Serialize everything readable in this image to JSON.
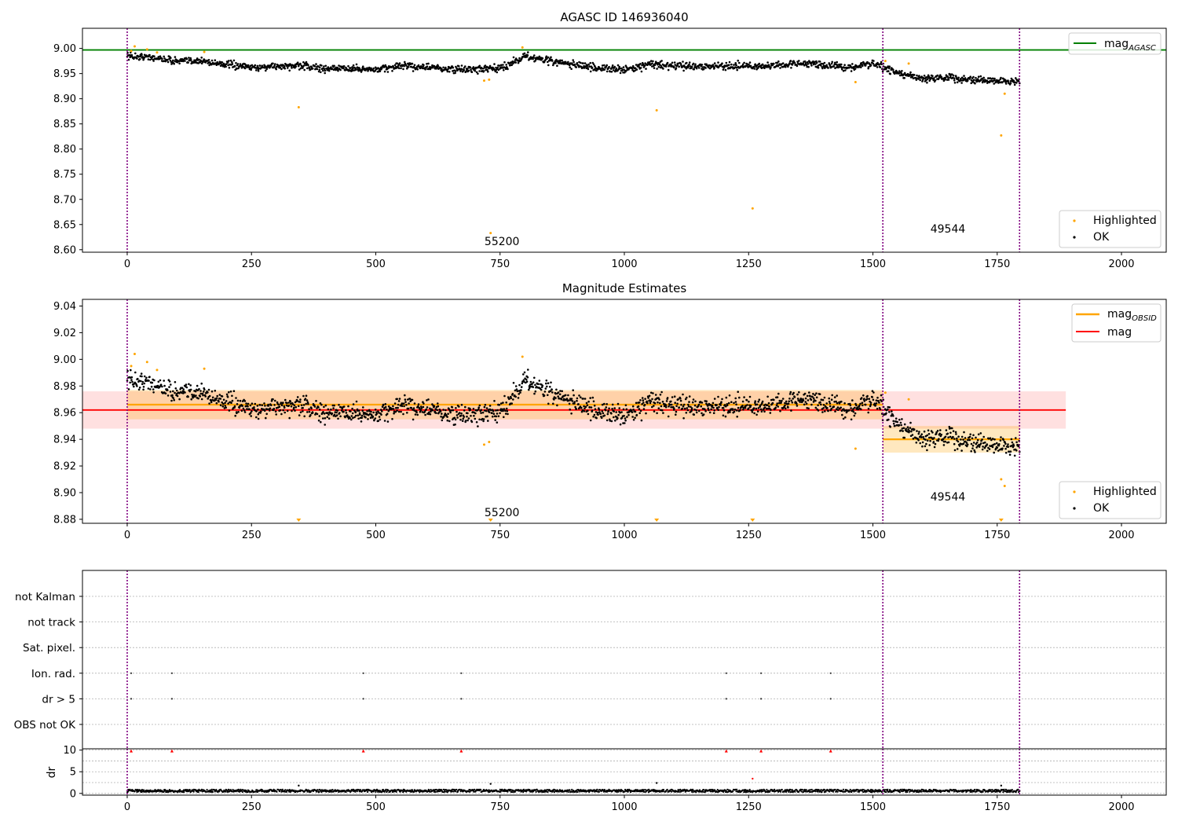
{
  "chart_data": [
    {
      "type": "scatter",
      "title": "AGASC ID 146936040",
      "xlim": [
        -90,
        2090
      ],
      "ylim": [
        8.595,
        9.04
      ],
      "xticks": [
        0,
        250,
        500,
        750,
        1000,
        1250,
        1500,
        1750,
        2000
      ],
      "xtick_labels": [
        "0",
        "250",
        "500",
        "750",
        "1000",
        "1250",
        "1500",
        "1750",
        "2000"
      ],
      "yticks": [
        8.6,
        8.65,
        8.7,
        8.75,
        8.8,
        8.85,
        8.9,
        8.95,
        9.0
      ],
      "ytick_labels": [
        "8.60",
        "8.65",
        "8.70",
        "8.75",
        "8.80",
        "8.85",
        "8.90",
        "8.95",
        "9.00"
      ],
      "hline": {
        "label": "mag",
        "label_sub": "AGASC",
        "y": 8.997,
        "color": "#008000"
      },
      "vlines": [
        0,
        1520,
        1795
      ],
      "annotations": [
        {
          "text": "55200",
          "x": 725
        },
        {
          "text": "49544",
          "x": 1622
        }
      ],
      "legend_lines": {
        "position": "upper right",
        "entries": [
          {
            "label": "mag",
            "sub": "AGASC",
            "color": "#008000"
          }
        ]
      },
      "legend_points": {
        "position": "lower right",
        "entries": [
          {
            "label": "Highlighted",
            "color": "#ffa500"
          },
          {
            "label": "OK",
            "color": "#000000"
          }
        ]
      },
      "ok_trend": {
        "x": [
          0,
          50,
          100,
          150,
          200,
          250,
          300,
          350,
          400,
          450,
          500,
          550,
          600,
          650,
          700,
          750,
          800,
          850,
          900,
          950,
          1000,
          1050,
          1100,
          1150,
          1200,
          1250,
          1300,
          1350,
          1400,
          1450,
          1500,
          1520,
          1550,
          1600,
          1650,
          1700,
          1750,
          1795
        ],
        "y": [
          8.985,
          8.982,
          8.975,
          8.975,
          8.968,
          8.962,
          8.965,
          8.965,
          8.96,
          8.96,
          8.958,
          8.965,
          8.963,
          8.958,
          8.958,
          8.96,
          8.985,
          8.975,
          8.968,
          8.96,
          8.958,
          8.968,
          8.965,
          8.965,
          8.965,
          8.965,
          8.965,
          8.97,
          8.968,
          8.962,
          8.97,
          8.963,
          8.95,
          8.94,
          8.943,
          8.937,
          8.935,
          8.935
        ]
      },
      "ok_scatter": 0.007,
      "highlighted": {
        "x": [
          8,
          15,
          40,
          60,
          155,
          345,
          718,
          728,
          731,
          795,
          1065,
          1258,
          1465,
          1525,
          1572,
          1758,
          1765
        ],
        "y": [
          8.995,
          9.004,
          8.998,
          8.992,
          8.993,
          8.883,
          8.936,
          8.938,
          8.633,
          9.002,
          8.877,
          8.682,
          8.933,
          8.975,
          8.97,
          8.827,
          8.91
        ]
      }
    },
    {
      "type": "scatter",
      "title": "Magnitude Estimates",
      "xlim": [
        -90,
        2090
      ],
      "ylim": [
        8.877,
        9.045
      ],
      "xticks": [
        0,
        250,
        500,
        750,
        1000,
        1250,
        1500,
        1750,
        2000
      ],
      "xtick_labels": [
        "0",
        "250",
        "500",
        "750",
        "1000",
        "1250",
        "1500",
        "1750",
        "2000"
      ],
      "yticks": [
        8.88,
        8.9,
        8.92,
        8.94,
        8.96,
        8.98,
        9.0,
        9.02,
        9.04
      ],
      "ytick_labels": [
        "8.88",
        "8.90",
        "8.92",
        "8.94",
        "8.96",
        "8.98",
        "9.00",
        "9.02",
        "9.04"
      ],
      "mag": {
        "value": 8.962,
        "band": [
          8.948,
          8.976
        ],
        "x_range": [
          -90,
          1888
        ],
        "color": "#ff0000"
      },
      "mag_obsid": [
        {
          "x_range": [
            0,
            1520
          ],
          "value": 8.966,
          "band": [
            8.955,
            8.977
          ]
        },
        {
          "x_range": [
            1520,
            1795
          ],
          "value": 8.94,
          "band": [
            8.93,
            8.95
          ]
        }
      ],
      "vlines": [
        0,
        1520,
        1795
      ],
      "annotations": [
        {
          "text": "55200",
          "x": 725
        },
        {
          "text": "49544",
          "x": 1622
        }
      ],
      "legend_lines": {
        "position": "upper right",
        "entries": [
          {
            "label": "mag",
            "sub": "OBSID",
            "color": "#ffa500"
          },
          {
            "label": "mag",
            "sub": "",
            "color": "#ff0000"
          }
        ]
      },
      "legend_points": {
        "position": "lower right",
        "entries": [
          {
            "label": "Highlighted",
            "color": "#ffa500"
          },
          {
            "label": "OK",
            "color": "#000000"
          }
        ]
      },
      "highlighted": {
        "x": [
          8,
          15,
          40,
          60,
          155,
          718,
          728,
          795,
          1465,
          1525,
          1572,
          1758,
          1765
        ],
        "y": [
          8.995,
          9.004,
          8.998,
          8.992,
          8.993,
          8.936,
          8.938,
          9.002,
          8.933,
          8.975,
          8.97,
          8.91,
          8.905
        ]
      },
      "below_range_x": [
        345,
        731,
        1065,
        1258,
        1758
      ]
    },
    {
      "type": "scatter",
      "title": "",
      "xlim": [
        -90,
        2090
      ],
      "categories": [
        "OBS not OK",
        "dr > 5",
        "Ion. rad.",
        "Sat. pixel.",
        "not track",
        "not Kalman"
      ],
      "flagged_x": [
        8,
        90,
        475,
        672,
        1205,
        1275,
        1415
      ],
      "flag_rows": [
        "dr > 5",
        "Ion. rad."
      ],
      "vlines": [
        0,
        1520,
        1795
      ]
    },
    {
      "type": "scatter",
      "title": "",
      "ylabel": "dr",
      "xlim": [
        -90,
        2090
      ],
      "ylim": [
        -0.4,
        10.3
      ],
      "yticks": [
        0,
        5,
        10
      ],
      "ytick_labels": [
        "0",
        "5",
        "10"
      ],
      "xticks": [
        0,
        250,
        500,
        750,
        1000,
        1250,
        1500,
        1750,
        2000
      ],
      "xtick_labels": [
        "0",
        "250",
        "500",
        "750",
        "1000",
        "1250",
        "1500",
        "1750",
        "2000"
      ],
      "baseline": 0.3,
      "outliers": {
        "x": [
          345,
          731,
          1065,
          1258,
          1758
        ],
        "y": [
          1.8,
          2.2,
          2.4,
          3.4,
          1.8
        ],
        "color": [
          "#000000",
          "#000000",
          "#000000",
          "#ff0000",
          "#000000"
        ]
      },
      "capped_x": [
        8,
        90,
        475,
        672,
        1205,
        1275,
        1415
      ],
      "capped_y": 10,
      "vlines": [
        0,
        1520,
        1795
      ]
    }
  ]
}
